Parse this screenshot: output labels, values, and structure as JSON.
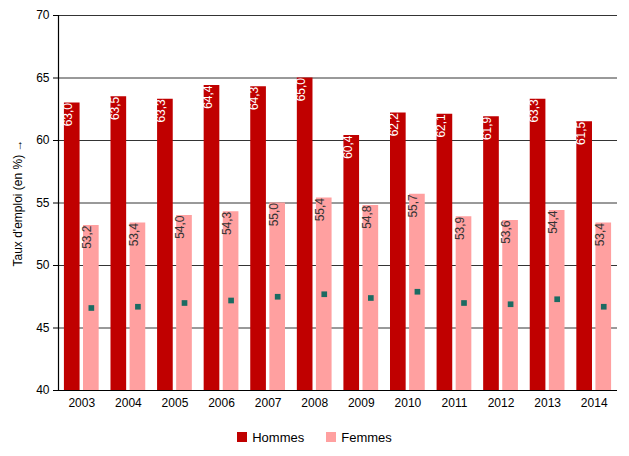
{
  "chart_data": {
    "type": "bar",
    "y_label": "Taux d'emploi (en %)",
    "categories": [
      "2003",
      "2004",
      "2005",
      "2006",
      "2007",
      "2008",
      "2009",
      "2010",
      "2011",
      "2012",
      "2013",
      "2014"
    ],
    "series": [
      {
        "name": "Hommes",
        "color": "#c00000",
        "values": [
          63.0,
          63.5,
          63.3,
          64.4,
          64.3,
          65.0,
          60.4,
          62.2,
          62.1,
          61.9,
          63.3,
          61.5
        ],
        "value_labels": [
          "63,0",
          "63,5",
          "63,3",
          "64,4",
          "64,3",
          "65,0",
          "60,4",
          "62,2",
          "62,1",
          "61,9",
          "63,3",
          "61,5"
        ]
      },
      {
        "name": "Femmes",
        "color": "#ffa0a0",
        "values": [
          53.2,
          53.4,
          54.0,
          54.3,
          55.0,
          55.4,
          54.8,
          55.7,
          53.9,
          53.6,
          54.4,
          53.4
        ],
        "value_labels": [
          "53,2",
          "53,4",
          "54,0",
          "54,3",
          "55,0",
          "55,4",
          "54,8",
          "55,7",
          "53,9",
          "53,6",
          "54,4",
          "53,4"
        ]
      },
      {
        "type": "scatter",
        "marker": "square",
        "color": "#1b6b62",
        "values": [
          46.6,
          46.7,
          47.0,
          47.2,
          47.5,
          47.7,
          47.4,
          47.9,
          47.0,
          46.9,
          47.3,
          46.7
        ]
      }
    ],
    "ylim": [
      40,
      70
    ],
    "yticks": [
      40,
      45,
      50,
      55,
      60,
      65,
      70
    ],
    "grid": true,
    "data_labels": true,
    "legend": "bottom"
  }
}
